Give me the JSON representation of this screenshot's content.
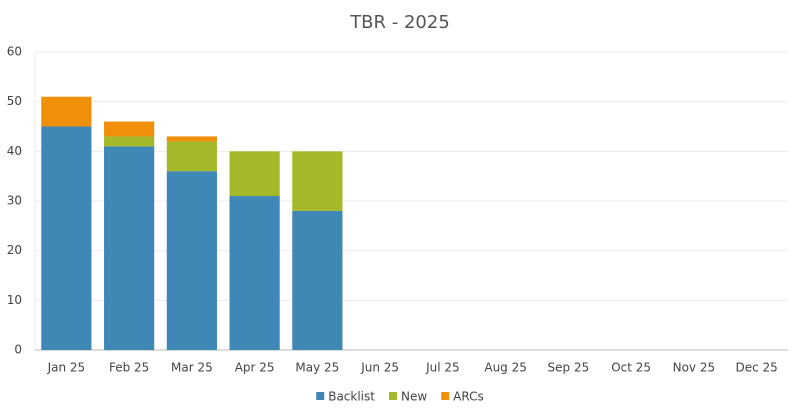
{
  "chart_data": {
    "type": "stacked_bar",
    "title": "TBR - 2025",
    "categories": [
      "Jan 25",
      "Feb 25",
      "Mar 25",
      "Apr 25",
      "May 25",
      "Jun 25",
      "Jul 25",
      "Aug 25",
      "Sep 25",
      "Oct 25",
      "Nov 25",
      "Dec 25"
    ],
    "series": [
      {
        "name": "Backlist",
        "color": "#3f87b5",
        "values": [
          45,
          41,
          36,
          31,
          28,
          null,
          null,
          null,
          null,
          null,
          null,
          null
        ]
      },
      {
        "name": "New",
        "color": "#a5b82a",
        "values": [
          0,
          2,
          6,
          9,
          12,
          null,
          null,
          null,
          null,
          null,
          null,
          null
        ]
      },
      {
        "name": "ARCs",
        "color": "#f0900a",
        "values": [
          6,
          3,
          1,
          0,
          0,
          null,
          null,
          null,
          null,
          null,
          null,
          null
        ]
      }
    ],
    "ylim": [
      0,
      60
    ],
    "yticks": [
      0,
      10,
      20,
      30,
      40,
      50,
      60
    ],
    "grid": true,
    "legend": "bottom"
  }
}
